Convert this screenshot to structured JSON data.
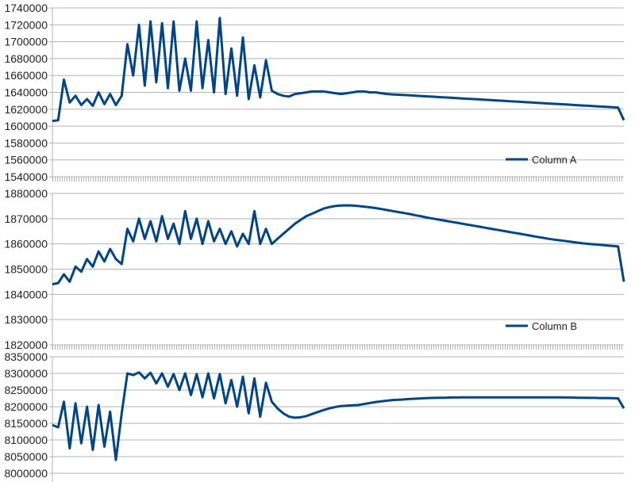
{
  "chart_data": [
    {
      "type": "line",
      "title": "",
      "xlabel": "",
      "ylabel": "",
      "ylim": [
        1540000,
        1740000
      ],
      "yticks": [
        "1540000",
        "1560000",
        "1580000",
        "1600000",
        "1620000",
        "1640000",
        "1660000",
        "1680000",
        "1700000",
        "1720000",
        "1740000"
      ],
      "grid": true,
      "legend": "bottom-right",
      "color": "#004586",
      "series": [
        {
          "name": "Column A",
          "values": [
            1606000,
            1607000,
            1655000,
            1628000,
            1636000,
            1625000,
            1632000,
            1624000,
            1640000,
            1626000,
            1638000,
            1625000,
            1636000,
            1697000,
            1660000,
            1720000,
            1648000,
            1724000,
            1652000,
            1722000,
            1645000,
            1724000,
            1642000,
            1680000,
            1642000,
            1724000,
            1645000,
            1702000,
            1640000,
            1728000,
            1638000,
            1692000,
            1636000,
            1705000,
            1632000,
            1672000,
            1634000,
            1678000,
            1642000,
            1638000,
            1636000,
            1635000,
            1638000,
            1639000,
            1640000,
            1641000,
            1641000,
            1641000,
            1640000,
            1639000,
            1638000,
            1639000,
            1640000,
            1641000,
            1641000,
            1640000,
            1640000,
            1639000,
            1638000,
            1637600,
            1637200,
            1636800,
            1636400,
            1636000,
            1635600,
            1635200,
            1634800,
            1634400,
            1634000,
            1633600,
            1633200,
            1632800,
            1632400,
            1632000,
            1631600,
            1631200,
            1630800,
            1630400,
            1630000,
            1629600,
            1629200,
            1628800,
            1628400,
            1628000,
            1627600,
            1627200,
            1626800,
            1626400,
            1626000,
            1625600,
            1625200,
            1624800,
            1624400,
            1624000,
            1623600,
            1623200,
            1622800,
            1622400,
            1622000,
            1607000
          ]
        }
      ]
    },
    {
      "type": "line",
      "title": "",
      "xlabel": "",
      "ylabel": "",
      "ylim": [
        1820000,
        1880000
      ],
      "yticks": [
        "1820000",
        "1830000",
        "1840000",
        "1850000",
        "1860000",
        "1870000",
        "1880000"
      ],
      "grid": true,
      "legend": "bottom-right",
      "color": "#004586",
      "series": [
        {
          "name": "Column B",
          "values": [
            1844000,
            1844500,
            1848000,
            1845000,
            1851000,
            1849000,
            1854000,
            1851000,
            1857000,
            1853000,
            1858000,
            1854000,
            1852000,
            1866000,
            1861000,
            1870000,
            1862000,
            1869000,
            1861000,
            1871000,
            1862000,
            1868000,
            1860000,
            1873000,
            1862000,
            1870000,
            1860000,
            1869000,
            1861000,
            1866000,
            1860000,
            1865000,
            1859000,
            1864000,
            1860000,
            1873000,
            1860000,
            1866000,
            1860000,
            1862000,
            1864000,
            1866000,
            1868000,
            1869500,
            1871000,
            1872000,
            1873000,
            1874000,
            1874600,
            1875000,
            1875200,
            1875300,
            1875200,
            1875000,
            1874800,
            1874500,
            1874200,
            1873800,
            1873400,
            1873000,
            1872600,
            1872200,
            1871800,
            1871300,
            1870900,
            1870400,
            1870000,
            1869600,
            1869200,
            1868800,
            1868400,
            1868000,
            1867600,
            1867200,
            1866800,
            1866400,
            1866000,
            1865600,
            1865200,
            1864800,
            1864400,
            1864000,
            1863600,
            1863200,
            1862800,
            1862400,
            1862000,
            1861700,
            1861400,
            1861100,
            1860800,
            1860500,
            1860200,
            1860000,
            1859800,
            1859600,
            1859400,
            1859200,
            1859000,
            1845000
          ]
        }
      ]
    },
    {
      "type": "line",
      "title": "",
      "xlabel": "",
      "ylabel": "",
      "ylim": [
        8000000,
        8350000
      ],
      "yticks": [
        "8000000",
        "8050000",
        "8100000",
        "8150000",
        "8200000",
        "8250000",
        "8300000",
        "8350000"
      ],
      "grid": true,
      "color": "#004586",
      "series": [
        {
          "values": [
            8145000,
            8138000,
            8215000,
            8075000,
            8210000,
            8090000,
            8200000,
            8070000,
            8205000,
            8080000,
            8185000,
            8040000,
            8180000,
            8300000,
            8295000,
            8303000,
            8285000,
            8302000,
            8270000,
            8300000,
            8260000,
            8298000,
            8250000,
            8300000,
            8235000,
            8298000,
            8228000,
            8300000,
            8225000,
            8298000,
            8210000,
            8280000,
            8200000,
            8290000,
            8180000,
            8285000,
            8170000,
            8272000,
            8215000,
            8195000,
            8180000,
            8170000,
            8167000,
            8168000,
            8172000,
            8178000,
            8184000,
            8190000,
            8195000,
            8199000,
            8202000,
            8203000,
            8204000,
            8205000,
            8208000,
            8211000,
            8214000,
            8216000,
            8218000,
            8220000,
            8221000,
            8222000,
            8223000,
            8224000,
            8225000,
            8226000,
            8226500,
            8227000,
            8227000,
            8227500,
            8227500,
            8228000,
            8228000,
            8228000,
            8228000,
            8228000,
            8228000,
            8228000,
            8228000,
            8228000,
            8228000,
            8228000,
            8228000,
            8228000,
            8228000,
            8228000,
            8228000,
            8228000,
            8228000,
            8227500,
            8227500,
            8227000,
            8227000,
            8226500,
            8226500,
            8226000,
            8226000,
            8225500,
            8225000,
            8195000
          ]
        }
      ]
    }
  ]
}
